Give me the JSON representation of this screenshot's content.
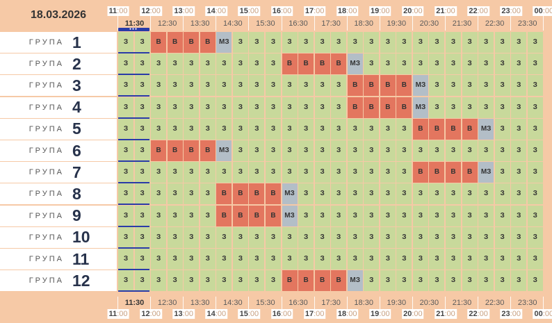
{
  "date": "18.03.2026",
  "hours": [
    "11",
    "12",
    "13",
    "14",
    "15",
    "16",
    "17",
    "18",
    "19",
    "20",
    "21",
    "22",
    "23",
    "00"
  ],
  "hour_suffix": ":00",
  "halves": [
    "11:30",
    "12:30",
    "13:30",
    "14:30",
    "15:30",
    "16:30",
    "17:30",
    "18:30",
    "19:30",
    "20:30",
    "21:30",
    "22:30",
    "23:30"
  ],
  "current_half": "11:30",
  "group_label": "ГРУПА",
  "legend": {
    "B": "В",
    "M": "МЗ",
    "Z": "З"
  },
  "groups": [
    {
      "number": "1",
      "cells": "ZZBBBBMZZZZZZZZZZZZZZZZZZZ"
    },
    {
      "number": "2",
      "cells": "ZZZZZZZZZZBBBBMZZZZZZZZZZZ"
    },
    {
      "number": "3",
      "cells": "ZZZZZZZZZZZZZZBBBBMZZZZZZZ"
    },
    {
      "number": "4",
      "cells": "ZZZZZZZZZZZZZZBBBBMZZZZZZZ"
    },
    {
      "number": "5",
      "cells": "ZZZZZZZZZZZZZZZZZZBBBBMZZZ"
    },
    {
      "number": "6",
      "cells": "ZZBBBBMZZZZZZZZZZZZZZZZZZZ"
    },
    {
      "number": "7",
      "cells": "ZZZZZZZZZZZZZZZZZZBBBBMZZZ"
    },
    {
      "number": "8",
      "cells": "ZZZZZZBBBBMZZZZZZZZZZZZZZZ"
    },
    {
      "number": "9",
      "cells": "ZZZZZZBBBBMZZZZZZZZZZZZZZZ"
    },
    {
      "number": "10",
      "cells": "ZZZZZZZZZZZZZZZZZZZZZZZZZZ"
    },
    {
      "number": "11",
      "cells": "ZZZZZZZZZZZZZZZZZZZZZZZZZZ"
    },
    {
      "number": "12",
      "cells": "ZZZZZZZZZZBBBBMZZZZZZZZZZZ"
    }
  ],
  "colors": {
    "free": "#c8d99b",
    "busy": "#e3765f",
    "partial": "#b3bec7",
    "background": "#f6c9a6",
    "now": "#2a3ba8"
  }
}
